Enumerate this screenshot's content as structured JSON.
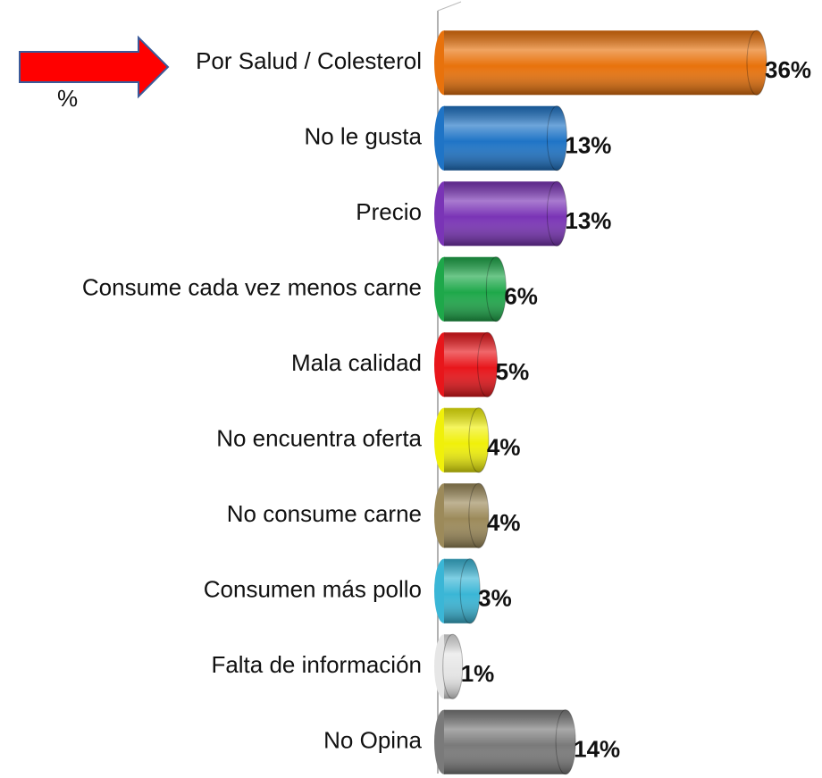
{
  "chart_data": {
    "type": "bar",
    "orientation": "horizontal",
    "annotation": "%",
    "categories": [
      "Por Salud / Colesterol",
      "No le gusta",
      "Precio",
      "Consume cada vez menos carne",
      "Mala calidad",
      "No encuentra oferta",
      "No consume carne",
      "Consumen más pollo",
      "Falta de información",
      "No Opina"
    ],
    "values": [
      36,
      13,
      13,
      6,
      5,
      4,
      4,
      3,
      1,
      14
    ],
    "value_labels": [
      "36%",
      "13%",
      "13%",
      "6%",
      "5%",
      "4%",
      "4%",
      "3%",
      "1%",
      "14%"
    ],
    "colors": [
      "#e8720c",
      "#1f74c6",
      "#7a34b6",
      "#1ea84a",
      "#e8161b",
      "#f0f00a",
      "#9c8a5a",
      "#3ab6d6",
      "#e6e6e6",
      "#7a7a7a"
    ]
  }
}
